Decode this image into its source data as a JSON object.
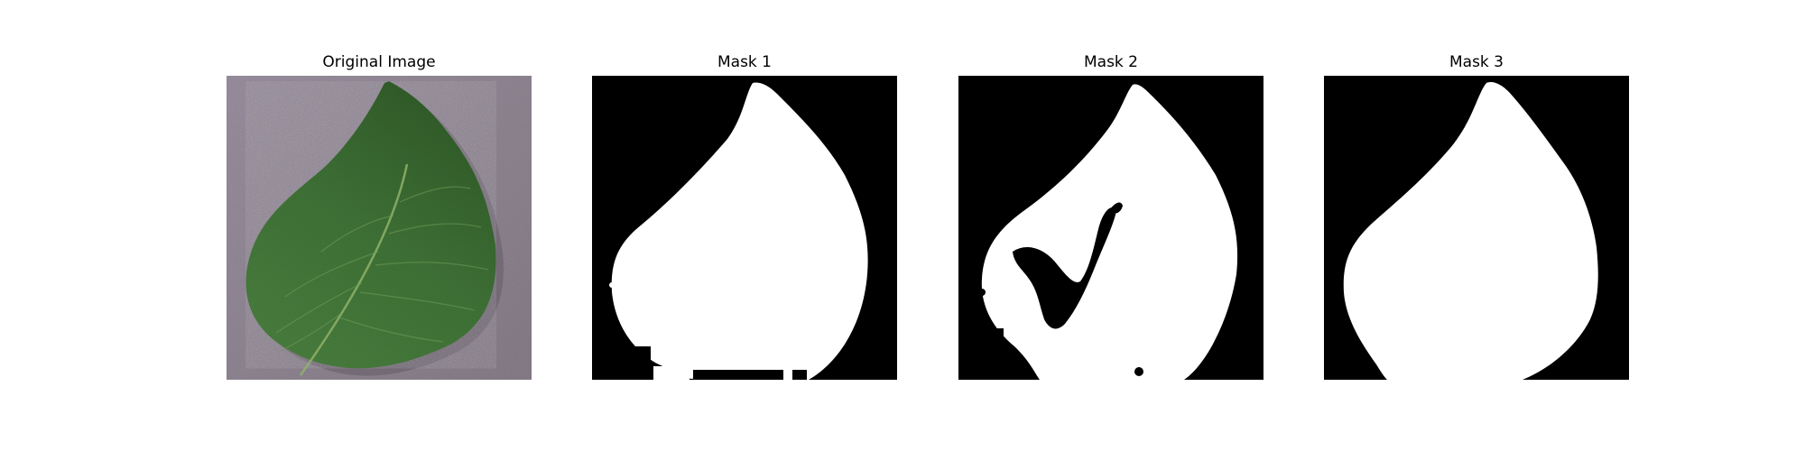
{
  "panels": [
    {
      "title": "Original Image",
      "kind": "photo"
    },
    {
      "title": "Mask 1",
      "kind": "mask"
    },
    {
      "title": "Mask 2",
      "kind": "mask"
    },
    {
      "title": "Mask 3",
      "kind": "mask"
    }
  ],
  "colors": {
    "background": "#ffffff",
    "mask_background": "#000000",
    "mask_foreground": "#ffffff",
    "leaf_green": "#3f6e35",
    "surface_gray": "#8e8590"
  }
}
